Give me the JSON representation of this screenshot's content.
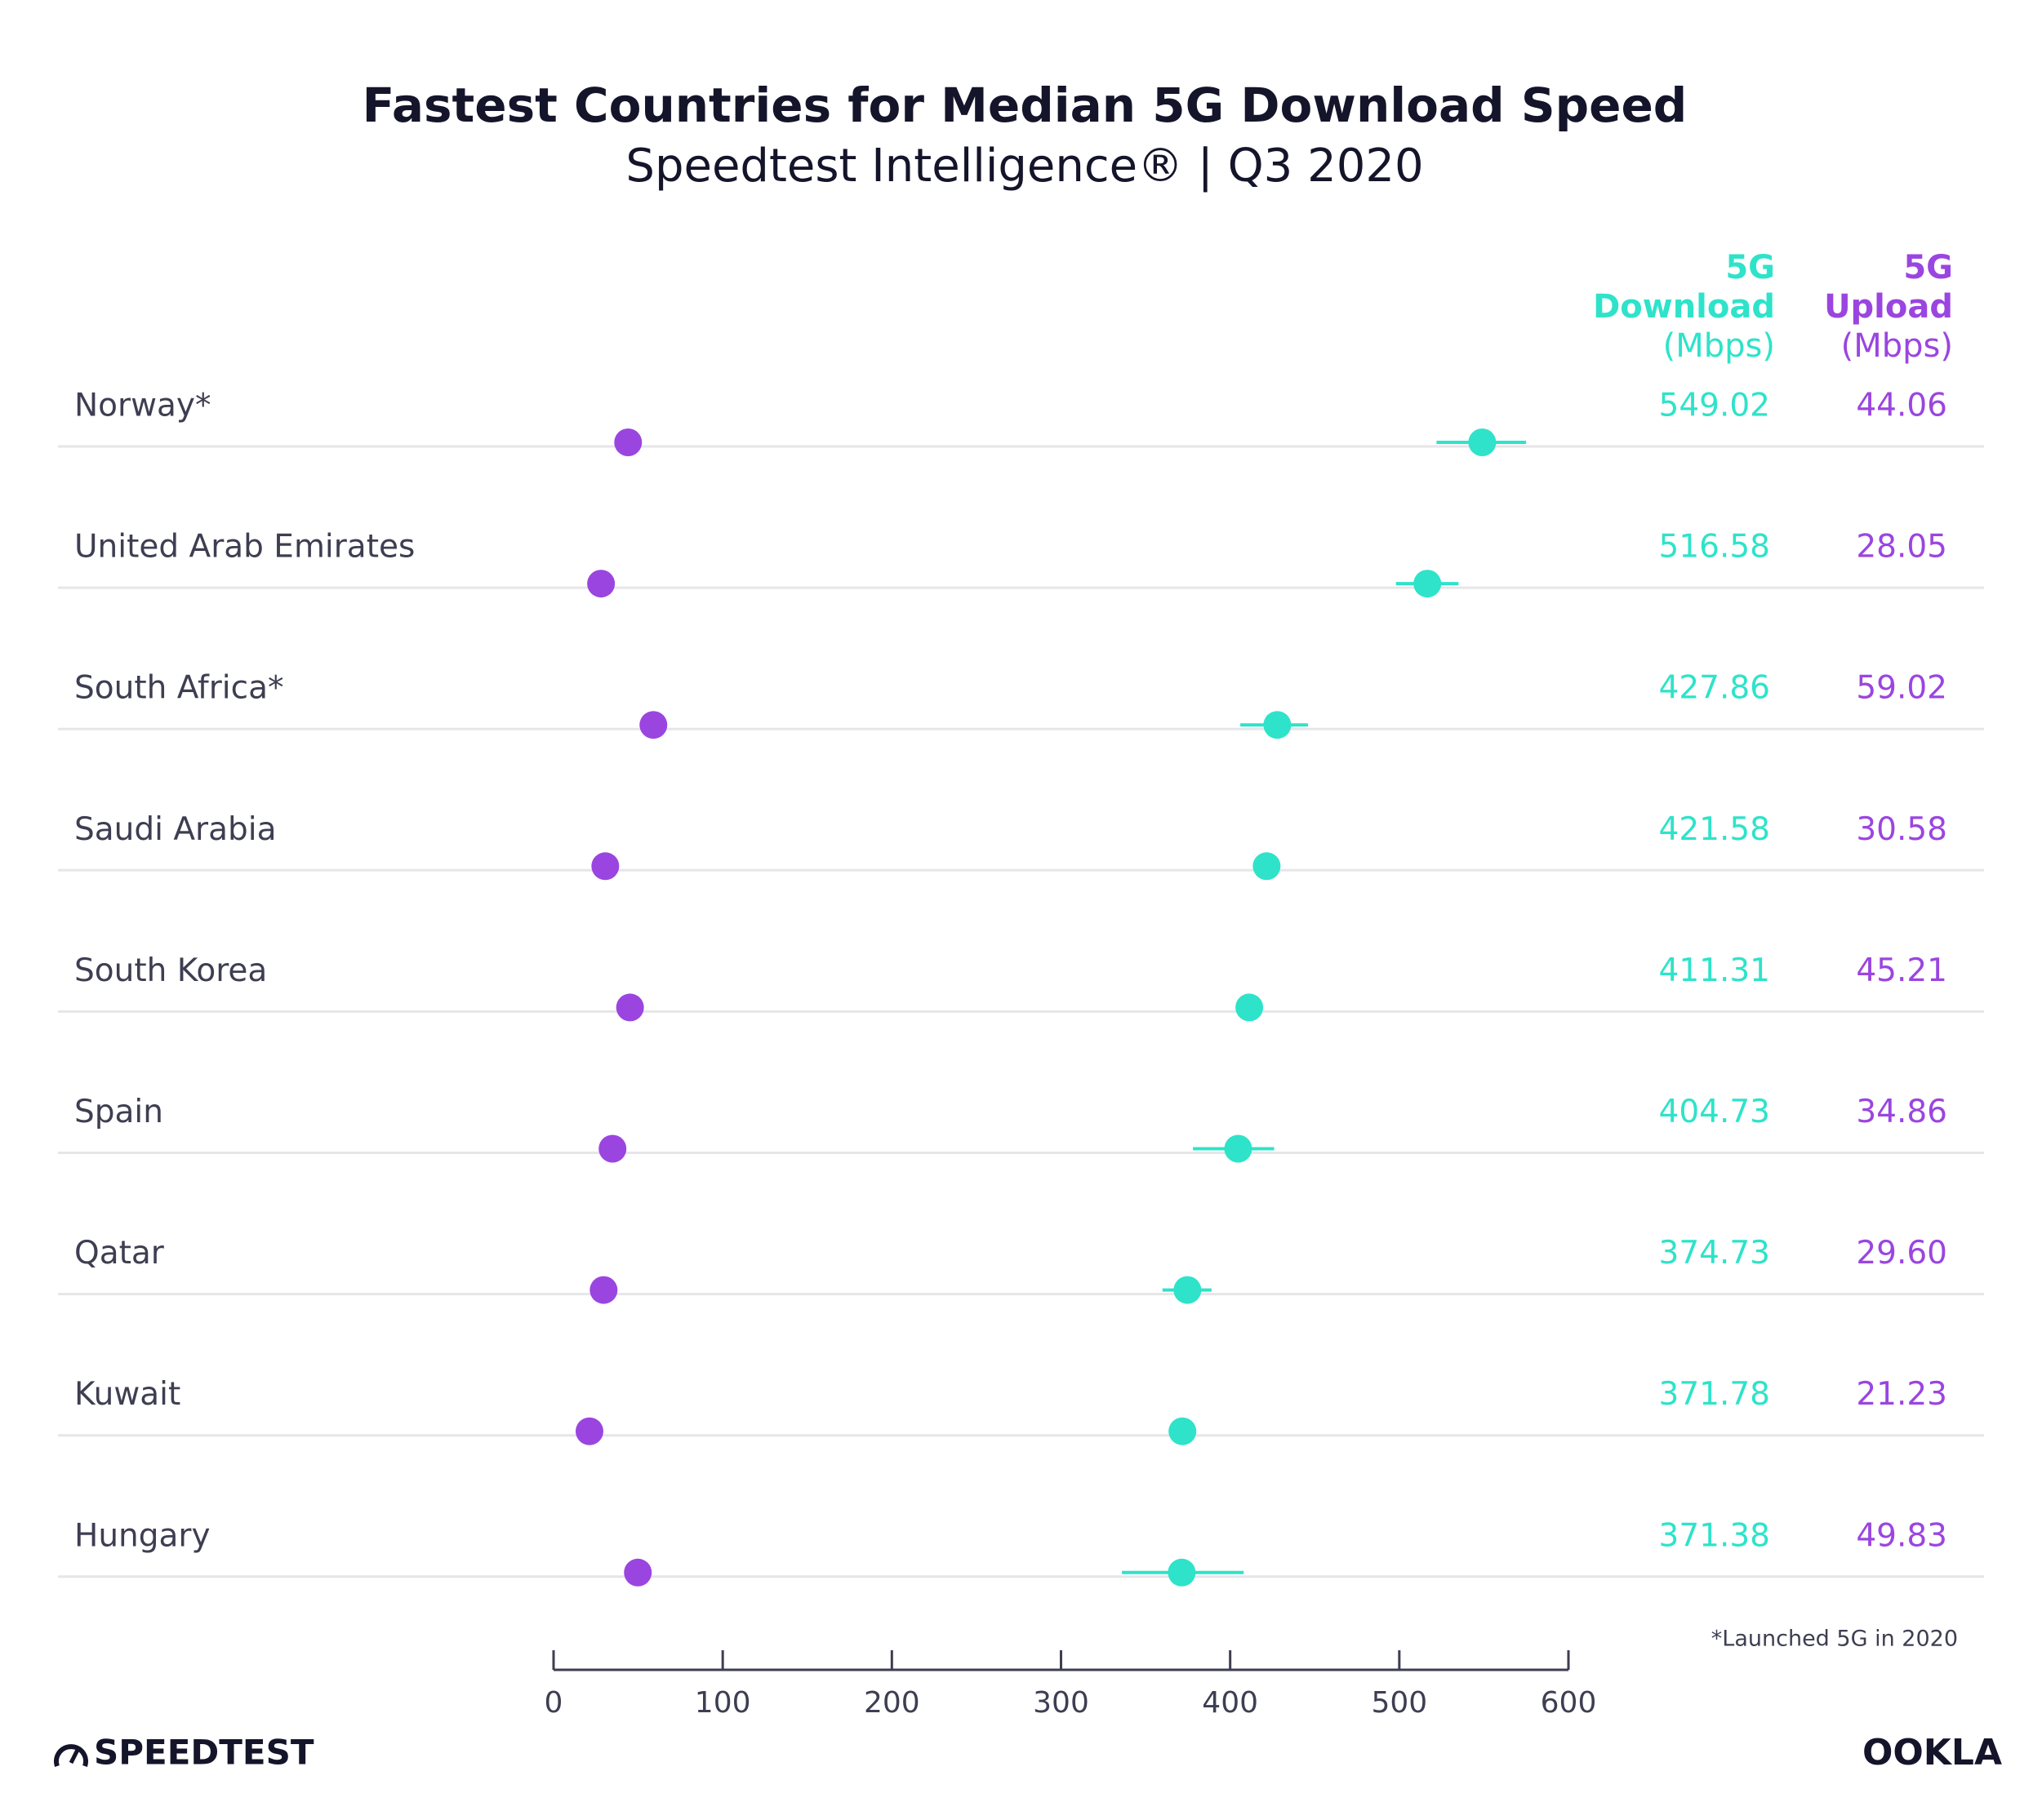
{
  "chart_data": {
    "type": "dot",
    "title": "Fastest Countries for Median 5G Download Speed",
    "subtitle": "Speedtest Intelligence® | Q3 2020",
    "categories": [
      "Norway*",
      "United Arab Emirates",
      "South Africa*",
      "Saudi Arabia",
      "South Korea",
      "Spain",
      "Qatar",
      "Kuwait",
      "Hungary"
    ],
    "series": [
      {
        "header": [
          "5G",
          "Download",
          "(Mbps)"
        ],
        "color": "#2ee3c9",
        "values": [
          549.02,
          516.58,
          427.86,
          421.58,
          411.31,
          404.73,
          374.73,
          371.78,
          371.38
        ],
        "value_labels": [
          "549.02",
          "516.58",
          "427.86",
          "421.58",
          "411.31",
          "404.73",
          "374.73",
          "371.78",
          "371.38"
        ],
        "ci_low": [
          522,
          498,
          406,
          null,
          null,
          378,
          360,
          null,
          336
        ],
        "ci_high": [
          575,
          535,
          446,
          null,
          null,
          426,
          389,
          null,
          408
        ]
      },
      {
        "header": [
          "5G",
          "Upload",
          "(Mbps)"
        ],
        "color": "#9b45e0",
        "values": [
          44.06,
          28.05,
          59.02,
          30.58,
          45.21,
          34.86,
          29.6,
          21.23,
          49.83
        ],
        "value_labels": [
          "44.06",
          "28.05",
          "59.02",
          "30.58",
          "45.21",
          "34.86",
          "29.60",
          "21.23",
          "49.83"
        ]
      }
    ],
    "xlim": [
      0,
      600
    ],
    "xticks": [
      0,
      100,
      200,
      300,
      400,
      500,
      600
    ],
    "footnote": "*Launched 5G in 2020",
    "branding": {
      "left": "SPEEDTEST",
      "right": "OOKLA"
    }
  }
}
